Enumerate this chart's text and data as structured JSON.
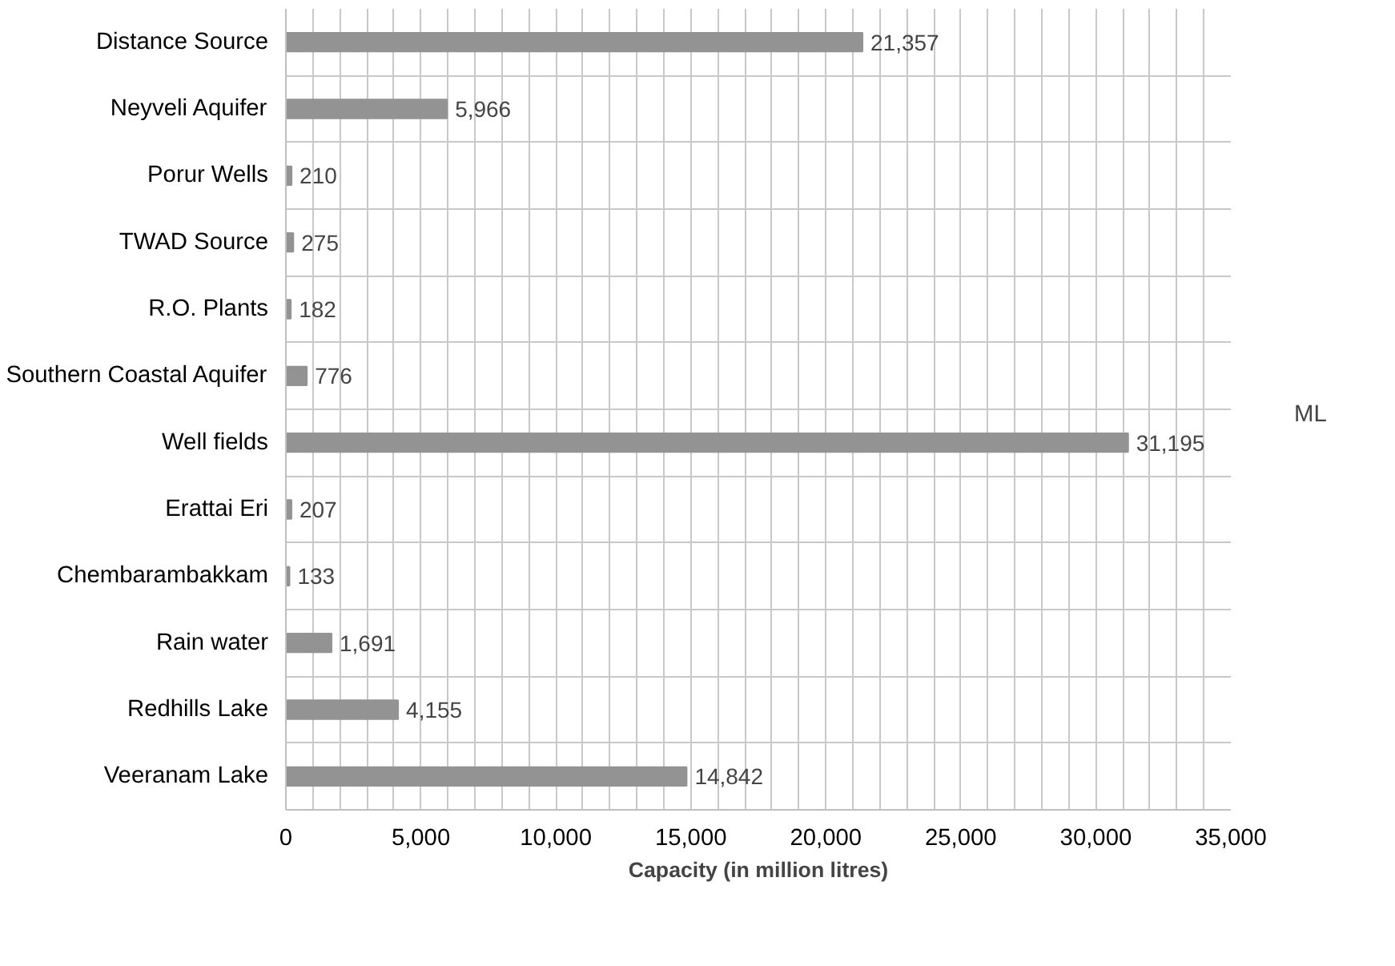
{
  "chart_data": {
    "type": "bar",
    "orientation": "horizontal",
    "xlabel": "Capacity (in million litres)",
    "categories": [
      "Distance Source",
      "Neyveli Aquifer",
      "Porur Wells",
      "TWAD Source",
      "R.O. Plants",
      "Southern Coastal Aquifer",
      "Well fields",
      "Erattai Eri",
      "Chembarambakkam",
      "Rain water",
      "Redhills Lake",
      "Veeranam Lake"
    ],
    "series": [
      {
        "name": "ML",
        "color": "#939393",
        "values": [
          21357,
          5966,
          210,
          275,
          182,
          776,
          31195,
          207,
          133,
          1691,
          4155,
          14842
        ],
        "value_labels": [
          "21,357",
          "5,966",
          "210",
          "275",
          "182",
          "776",
          "31,195",
          "207",
          "133",
          "1,691",
          "4,155",
          "14,842"
        ]
      }
    ],
    "xlim": [
      0,
      35000
    ],
    "xticks": [
      {
        "value": 0,
        "label": "0"
      },
      {
        "value": 1000,
        "label": null
      },
      {
        "value": 2000,
        "label": null
      },
      {
        "value": 3000,
        "label": null
      },
      {
        "value": 4000,
        "label": null
      },
      {
        "value": 5000,
        "label": "5,000"
      },
      {
        "value": 6000,
        "label": null
      },
      {
        "value": 7000,
        "label": null
      },
      {
        "value": 8000,
        "label": null
      },
      {
        "value": 9000,
        "label": null
      },
      {
        "value": 10000,
        "label": "10,000"
      },
      {
        "value": 11000,
        "label": null
      },
      {
        "value": 12000,
        "label": null
      },
      {
        "value": 13000,
        "label": null
      },
      {
        "value": 14000,
        "label": null
      },
      {
        "value": 15000,
        "label": "15,000"
      },
      {
        "value": 16000,
        "label": null
      },
      {
        "value": 17000,
        "label": null
      },
      {
        "value": 18000,
        "label": null
      },
      {
        "value": 19000,
        "label": null
      },
      {
        "value": 20000,
        "label": "20,000"
      },
      {
        "value": 21000,
        "label": null
      },
      {
        "value": 22000,
        "label": null
      },
      {
        "value": 23000,
        "label": null
      },
      {
        "value": 24000,
        "label": null
      },
      {
        "value": 25000,
        "label": "25,000"
      },
      {
        "value": 26000,
        "label": null
      },
      {
        "value": 27000,
        "label": null
      },
      {
        "value": 28000,
        "label": null
      },
      {
        "value": 29000,
        "label": null
      },
      {
        "value": 30000,
        "label": "30,000"
      },
      {
        "value": 31000,
        "label": null
      },
      {
        "value": 32000,
        "label": null
      },
      {
        "value": 33000,
        "label": null
      },
      {
        "value": 34000,
        "label": null
      },
      {
        "value": 35000,
        "label": "35,000"
      }
    ],
    "grid": true,
    "legend": "right"
  }
}
